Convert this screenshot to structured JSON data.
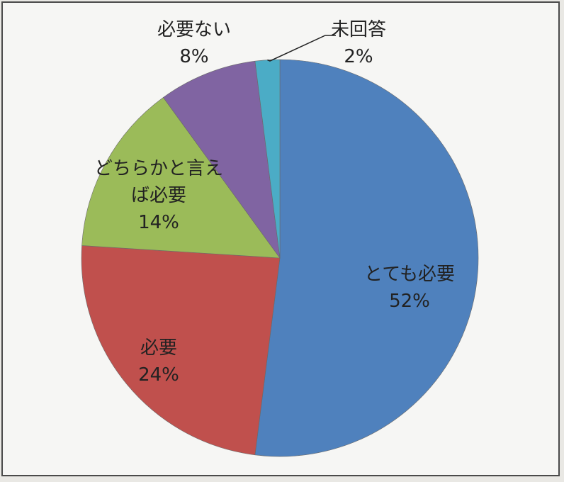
{
  "chart_data": {
    "type": "pie",
    "start_angle_deg": 0,
    "direction": "clockwise",
    "slices": [
      {
        "label": [
          "とても必要"
        ],
        "value": 52,
        "pct_label": "52%",
        "color": "#4f81bd"
      },
      {
        "label": [
          "必要"
        ],
        "value": 24,
        "pct_label": "24%",
        "color": "#c0504d"
      },
      {
        "label": [
          "どちらかと言え",
          "ば必要"
        ],
        "value": 14,
        "pct_label": "14%",
        "color": "#9bbb59"
      },
      {
        "label": [
          "必要ない"
        ],
        "value": 8,
        "pct_label": "8%",
        "color": "#8064a2"
      },
      {
        "label": [
          "未回答"
        ],
        "value": 2,
        "pct_label": "2%",
        "color": "#4bacc6"
      }
    ]
  }
}
